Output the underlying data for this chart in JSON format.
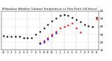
{
  "title": "Milwaukee Weather Outdoor Temperature vs Dew Point (24 Hours)",
  "title_fontsize": 3.0,
  "bg_color": "#ffffff",
  "grid_color": "#888888",
  "temp_color": "#000000",
  "dew_color": "#ff0000",
  "blue_color": "#0000ff",
  "hours": [
    0,
    1,
    2,
    3,
    4,
    5,
    6,
    7,
    8,
    9,
    10,
    11,
    12,
    13,
    14,
    15,
    16,
    17,
    18,
    19,
    20,
    21,
    22,
    23
  ],
  "temp_values": [
    28,
    27,
    27,
    27,
    27,
    26,
    26,
    26,
    30,
    34,
    38,
    43,
    47,
    51,
    54,
    55,
    54,
    52,
    49,
    46,
    43,
    41,
    40,
    52
  ],
  "dew_values": [
    null,
    null,
    null,
    null,
    null,
    null,
    null,
    null,
    null,
    19,
    22,
    26,
    30,
    34,
    38,
    40,
    42,
    44,
    38,
    33,
    null,
    null,
    null,
    50
  ],
  "blue_values": [
    null,
    null,
    null,
    null,
    null,
    null,
    null,
    null,
    null,
    18,
    20,
    24,
    28,
    32,
    null,
    null,
    null,
    null,
    null,
    null,
    null,
    null,
    null,
    null
  ],
  "ylim": [
    10,
    60
  ],
  "ytick_vals": [
    10,
    20,
    30,
    40,
    50,
    60
  ],
  "ytick_labels": [
    "10",
    "20",
    "30",
    "40",
    "50",
    "60"
  ],
  "xtick_positions": [
    0,
    1,
    2,
    3,
    4,
    5,
    6,
    7,
    8,
    9,
    10,
    11,
    12,
    13,
    14,
    15,
    16,
    17,
    18,
    19,
    20,
    21,
    22,
    23
  ],
  "xtick_labels": [
    "12",
    "1",
    "2",
    "3",
    "4",
    "5",
    "6",
    "7",
    "8",
    "9",
    "10",
    "11",
    "12",
    "1",
    "2",
    "3",
    "4",
    "5",
    "6",
    "7",
    "8",
    "9",
    "10",
    "11"
  ],
  "vline_positions": [
    3,
    6,
    9,
    12,
    15,
    18,
    21
  ],
  "ylabel_fontsize": 3.0,
  "xtick_fontsize": 2.5,
  "markersize": 1.5
}
